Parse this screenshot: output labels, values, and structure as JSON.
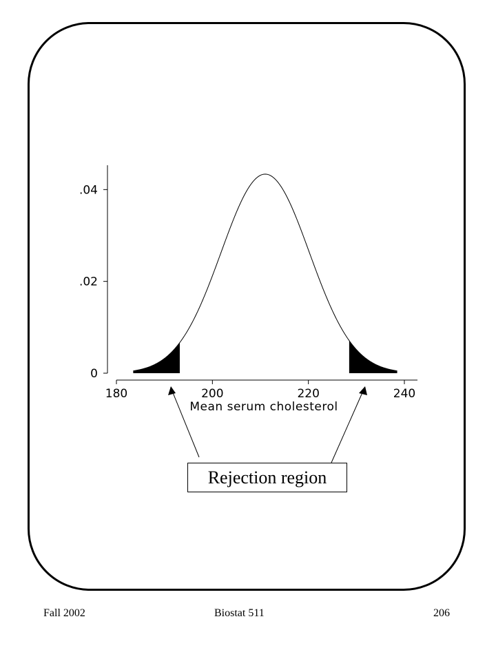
{
  "footer": {
    "left": "Fall 2002",
    "center": "Biostat 511",
    "right": "206"
  },
  "callout": {
    "label": "Rejection region"
  },
  "chart_data": {
    "type": "area",
    "distribution": "normal",
    "mean": 211,
    "sd": 9.2,
    "x_range": [
      183.5,
      238.5
    ],
    "xlim": [
      180,
      240
    ],
    "ylim": [
      0,
      0.045
    ],
    "xticks": [
      180,
      200,
      220,
      240
    ],
    "xtick_labels": [
      "180",
      "200",
      "220",
      "240"
    ],
    "yticks": [
      0,
      0.02,
      0.04
    ],
    "ytick_labels": [
      "0",
      ".02",
      ".04"
    ],
    "xlabel": "Mean serum cholesterol",
    "ylabel": "",
    "title": "",
    "rejection_region": {
      "lower": [
        183.5,
        193.2
      ],
      "upper": [
        228.5,
        238.5
      ]
    },
    "grid": false
  }
}
